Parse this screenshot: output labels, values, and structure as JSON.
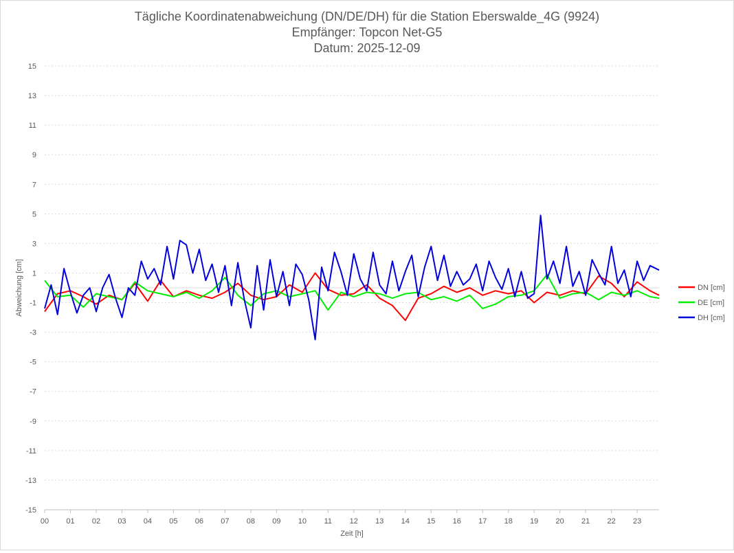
{
  "chart_data": {
    "type": "line",
    "title_lines": [
      "Tägliche Koordinatenabweichung (DN/DE/DH) für die Station Eberswalde_4G (9924)",
      "Empfänger: Topcon Net-G5",
      "Datum: 2025-12-09"
    ],
    "xlabel": "Zeit [h]",
    "ylabel": "Abweichung [cm]",
    "xlim": [
      0,
      23.85
    ],
    "ylim": [
      -15,
      15
    ],
    "x_ticks": [
      {
        "value": 0,
        "label": "00"
      },
      {
        "value": 1,
        "label": "01"
      },
      {
        "value": 2,
        "label": "02"
      },
      {
        "value": 3,
        "label": "03"
      },
      {
        "value": 4,
        "label": "04"
      },
      {
        "value": 5,
        "label": "05"
      },
      {
        "value": 6,
        "label": "06"
      },
      {
        "value": 7,
        "label": "07"
      },
      {
        "value": 8,
        "label": "08"
      },
      {
        "value": 9,
        "label": "09"
      },
      {
        "value": 10,
        "label": "10"
      },
      {
        "value": 11,
        "label": "11"
      },
      {
        "value": 12,
        "label": "12"
      },
      {
        "value": 13,
        "label": "13"
      },
      {
        "value": 14,
        "label": "14"
      },
      {
        "value": 15,
        "label": "15"
      },
      {
        "value": 16,
        "label": "16"
      },
      {
        "value": 17,
        "label": "17"
      },
      {
        "value": 18,
        "label": "18"
      },
      {
        "value": 19,
        "label": "19"
      },
      {
        "value": 20,
        "label": "20"
      },
      {
        "value": 21,
        "label": "21"
      },
      {
        "value": 22,
        "label": "22"
      },
      {
        "value": 23,
        "label": "23"
      }
    ],
    "y_ticks": [
      {
        "value": 15,
        "label": "15"
      },
      {
        "value": 13,
        "label": "13"
      },
      {
        "value": 11,
        "label": "11"
      },
      {
        "value": 9,
        "label": "9"
      },
      {
        "value": 7,
        "label": "7"
      },
      {
        "value": 5,
        "label": "5"
      },
      {
        "value": 3,
        "label": "3"
      },
      {
        "value": 1,
        "label": "1"
      },
      {
        "value": -1,
        "label": "-1"
      },
      {
        "value": -3,
        "label": "-3"
      },
      {
        "value": -5,
        "label": "-5"
      },
      {
        "value": -7,
        "label": "-7"
      },
      {
        "value": -9,
        "label": "-9"
      },
      {
        "value": -11,
        "label": "-11"
      },
      {
        "value": -13,
        "label": "-13"
      },
      {
        "value": -15,
        "label": "-15"
      }
    ],
    "grid": true,
    "legend_position": "right",
    "series": [
      {
        "name": "DN [cm]",
        "color": "#ff0000",
        "x": [
          0,
          0.5,
          1,
          1.5,
          2,
          2.5,
          3,
          3.5,
          4,
          4.5,
          5,
          5.5,
          6,
          6.5,
          7,
          7.5,
          8,
          8.5,
          9,
          9.5,
          10,
          10.5,
          11,
          11.5,
          12,
          12.5,
          13,
          13.5,
          14,
          14.5,
          15,
          15.5,
          16,
          16.5,
          17,
          17.5,
          18,
          18.5,
          19,
          19.5,
          20,
          20.5,
          21,
          21.5,
          22,
          22.5,
          23,
          23.5,
          23.85
        ],
        "values": [
          -1.6,
          -0.4,
          -0.2,
          -0.6,
          -1.1,
          -0.5,
          -0.8,
          0.3,
          -0.9,
          0.5,
          -0.6,
          -0.2,
          -0.5,
          -0.7,
          -0.3,
          0.3,
          -0.5,
          -0.8,
          -0.6,
          0.2,
          -0.3,
          1.0,
          -0.1,
          -0.5,
          -0.4,
          0.2,
          -0.7,
          -1.2,
          -2.2,
          -0.7,
          -0.4,
          0.1,
          -0.3,
          0.0,
          -0.5,
          -0.2,
          -0.4,
          -0.2,
          -1.0,
          -0.3,
          -0.5,
          -0.2,
          -0.4,
          0.8,
          0.3,
          -0.6,
          0.4,
          -0.2,
          -0.5
        ]
      },
      {
        "name": "DE [cm]",
        "color": "#00ee00",
        "x": [
          0,
          0.5,
          1,
          1.5,
          2,
          2.5,
          3,
          3.5,
          4,
          4.5,
          5,
          5.5,
          6,
          6.5,
          7,
          7.5,
          8,
          8.5,
          9,
          9.5,
          10,
          10.5,
          11,
          11.5,
          12,
          12.5,
          13,
          13.5,
          14,
          14.5,
          15,
          15.5,
          16,
          16.5,
          17,
          17.5,
          18,
          18.5,
          19,
          19.5,
          20,
          20.5,
          21,
          21.5,
          22,
          22.5,
          23,
          23.5,
          23.85
        ],
        "values": [
          0.5,
          -0.6,
          -0.5,
          -1.3,
          -0.4,
          -0.6,
          -0.8,
          0.4,
          -0.2,
          -0.4,
          -0.6,
          -0.3,
          -0.7,
          -0.2,
          0.7,
          -0.5,
          -1.2,
          -0.4,
          -0.2,
          -0.6,
          -0.4,
          -0.2,
          -1.5,
          -0.3,
          -0.6,
          -0.3,
          -0.4,
          -0.7,
          -0.4,
          -0.3,
          -0.8,
          -0.6,
          -0.9,
          -0.5,
          -1.4,
          -1.1,
          -0.6,
          -0.5,
          -0.2,
          0.9,
          -0.7,
          -0.4,
          -0.3,
          -0.8,
          -0.3,
          -0.5,
          -0.2,
          -0.6,
          -0.7
        ]
      },
      {
        "name": "DH [cm]",
        "color": "#0000dd",
        "x": [
          0,
          0.25,
          0.5,
          0.75,
          1,
          1.25,
          1.5,
          1.75,
          2,
          2.25,
          2.5,
          2.75,
          3,
          3.25,
          3.5,
          3.75,
          4,
          4.25,
          4.5,
          4.75,
          5,
          5.25,
          5.5,
          5.75,
          6,
          6.25,
          6.5,
          6.75,
          7,
          7.25,
          7.5,
          7.75,
          8,
          8.25,
          8.5,
          8.75,
          9,
          9.25,
          9.5,
          9.75,
          10,
          10.25,
          10.5,
          10.75,
          11,
          11.25,
          11.5,
          11.75,
          12,
          12.25,
          12.5,
          12.75,
          13,
          13.25,
          13.5,
          13.75,
          14,
          14.25,
          14.5,
          14.75,
          15,
          15.25,
          15.5,
          15.75,
          16,
          16.25,
          16.5,
          16.75,
          17,
          17.25,
          17.5,
          17.75,
          18,
          18.25,
          18.5,
          18.75,
          19,
          19.25,
          19.5,
          19.75,
          20,
          20.25,
          20.5,
          20.75,
          21,
          21.25,
          21.5,
          21.75,
          22,
          22.25,
          22.5,
          22.75,
          23,
          23.25,
          23.5,
          23.85
        ],
        "values": [
          -1.4,
          0.2,
          -1.8,
          1.3,
          -0.3,
          -1.7,
          -0.5,
          0.0,
          -1.6,
          0.0,
          0.9,
          -0.7,
          -2.0,
          0.0,
          -0.5,
          1.8,
          0.6,
          1.3,
          0.2,
          2.8,
          0.6,
          3.2,
          2.9,
          1.0,
          2.6,
          0.5,
          1.6,
          -0.3,
          1.5,
          -1.2,
          1.7,
          -0.8,
          -2.7,
          1.5,
          -1.5,
          1.9,
          -0.6,
          1.1,
          -1.2,
          1.6,
          0.9,
          -0.8,
          -3.5,
          1.4,
          -0.2,
          2.4,
          1.1,
          -0.5,
          2.3,
          0.6,
          -0.2,
          2.4,
          0.2,
          -0.4,
          1.8,
          -0.2,
          1.1,
          2.2,
          -0.6,
          1.4,
          2.8,
          0.5,
          2.2,
          0.1,
          1.1,
          0.2,
          0.6,
          1.6,
          -0.2,
          1.8,
          0.7,
          -0.1,
          1.3,
          -0.6,
          1.1,
          -0.7,
          -0.4,
          4.9,
          0.6,
          1.8,
          0.3,
          2.8,
          0.1,
          1.1,
          -0.5,
          1.9,
          1.0,
          0.2,
          2.8,
          0.3,
          1.2,
          -0.6,
          1.8,
          0.5,
          1.5,
          1.2
        ]
      }
    ]
  }
}
